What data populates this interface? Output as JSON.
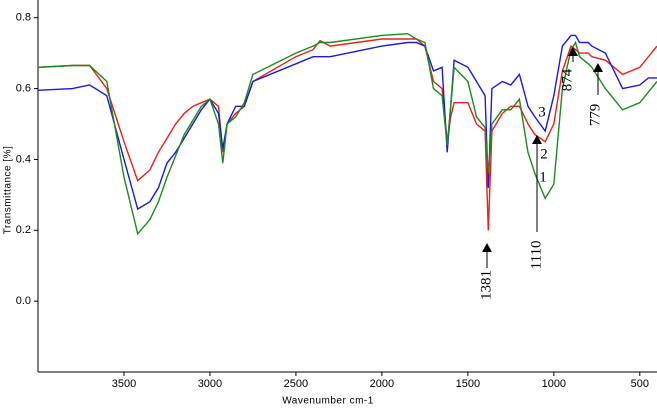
{
  "chart_data": {
    "type": "line",
    "x_label": "Wavenumber cm-1",
    "y_label": "Transmittance [%]",
    "xlim": [
      4000,
      400
    ],
    "ylim": [
      -0.2,
      0.85
    ],
    "xticks": [
      3500,
      3000,
      2500,
      2000,
      1500,
      1000,
      500
    ],
    "yticks": [
      {
        "value": 0,
        "label": "0.0"
      },
      0.2,
      0.4,
      0.6,
      0.8
    ],
    "annotations": [
      "1381",
      "1110",
      "874",
      "779",
      "1",
      "2",
      "3"
    ],
    "x": [
      4000,
      3800,
      3700,
      3600,
      3500,
      3420,
      3350,
      3300,
      3250,
      3200,
      3150,
      3100,
      3050,
      3000,
      2950,
      2925,
      2900,
      2850,
      2800,
      2750,
      2500,
      2400,
      2360,
      2300,
      2000,
      1850,
      1800,
      1750,
      1700,
      1650,
      1620,
      1600,
      1580,
      1500,
      1450,
      1400,
      1381,
      1360,
      1300,
      1250,
      1200,
      1150,
      1110,
      1050,
      1000,
      950,
      900,
      874,
      850,
      800,
      779,
      700,
      600,
      500,
      450,
      400
    ],
    "series": [
      {
        "color": "#e8211c",
        "values": [
          0.66,
          0.665,
          0.665,
          0.6,
          0.45,
          0.34,
          0.37,
          0.42,
          0.46,
          0.5,
          0.53,
          0.55,
          0.56,
          0.57,
          0.55,
          0.42,
          0.5,
          0.53,
          0.55,
          0.62,
          0.69,
          0.71,
          0.735,
          0.72,
          0.74,
          0.74,
          0.74,
          0.72,
          0.62,
          0.6,
          0.45,
          0.52,
          0.56,
          0.56,
          0.5,
          0.48,
          0.2,
          0.48,
          0.53,
          0.55,
          0.55,
          0.5,
          0.47,
          0.45,
          0.5,
          0.65,
          0.72,
          0.71,
          0.7,
          0.7,
          0.69,
          0.68,
          0.64,
          0.66,
          0.69,
          0.72
        ]
      },
      {
        "color": "#1a1ae0",
        "values": [
          0.595,
          0.6,
          0.61,
          0.58,
          0.4,
          0.26,
          0.28,
          0.32,
          0.39,
          0.42,
          0.46,
          0.5,
          0.54,
          0.57,
          0.53,
          0.43,
          0.5,
          0.55,
          0.55,
          0.62,
          0.67,
          0.69,
          0.69,
          0.69,
          0.72,
          0.73,
          0.73,
          0.72,
          0.65,
          0.66,
          0.42,
          0.55,
          0.68,
          0.66,
          0.62,
          0.58,
          0.32,
          0.6,
          0.62,
          0.61,
          0.64,
          0.55,
          0.52,
          0.48,
          0.58,
          0.72,
          0.75,
          0.75,
          0.73,
          0.73,
          0.72,
          0.7,
          0.6,
          0.61,
          0.63,
          0.63
        ]
      },
      {
        "color": "#1c8a1c",
        "values": [
          0.66,
          0.665,
          0.665,
          0.62,
          0.35,
          0.19,
          0.23,
          0.28,
          0.35,
          0.41,
          0.47,
          0.51,
          0.55,
          0.57,
          0.5,
          0.39,
          0.5,
          0.52,
          0.56,
          0.64,
          0.7,
          0.72,
          0.73,
          0.73,
          0.75,
          0.755,
          0.74,
          0.73,
          0.6,
          0.58,
          0.44,
          0.55,
          0.66,
          0.62,
          0.52,
          0.49,
          0.36,
          0.5,
          0.54,
          0.54,
          0.57,
          0.42,
          0.36,
          0.29,
          0.33,
          0.6,
          0.71,
          0.73,
          0.69,
          0.67,
          0.66,
          0.6,
          0.54,
          0.56,
          0.59,
          0.62
        ]
      }
    ]
  }
}
